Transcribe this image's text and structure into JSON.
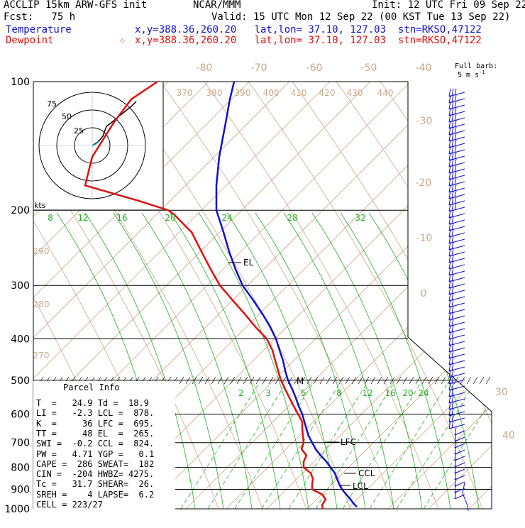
{
  "header": {
    "left1": "ACCLIP 15km ARW-GFS init",
    "left2": "Fcst:   75 h",
    "center": "NCAR/MMM",
    "init": "Init: 12 UTC Fri 09 Sep 22",
    "valid": "Valid: 15 UTC Mon 12 Sep 22 (00 KST Tue 13 Sep 22)",
    "temp_label": "Temperature",
    "temp_loc": "x,y=388.36,260.20   lat,lon= 37.10, 127.03  stn=RKSO,47122",
    "dew_label": "Dewpoint",
    "dew_star": "☆",
    "dew_loc": "x,y=388.36,260.20   lat,lon= 37.10, 127.03  stn=RKSO,47122"
  },
  "barb_key": {
    "line1": "Full barb:",
    "line2": "5 m s",
    "exp": "-1"
  },
  "pressure_labels": [
    "100",
    "200",
    "300",
    "400",
    "500",
    "600",
    "700",
    "800",
    "900",
    "1000"
  ],
  "top_labels": {
    "temps": [
      "-80",
      "-70",
      "-60",
      "-50",
      "-40"
    ],
    "theta": [
      "370",
      "380",
      "390",
      "400",
      "410",
      "420",
      "430",
      "440"
    ],
    "right_temps": [
      "-30",
      "-20",
      "-10",
      "0"
    ],
    "lower_right": [
      "30",
      "40"
    ],
    "theta_left": [
      "290",
      "280",
      "270"
    ],
    "mixing_upper": [
      "8",
      "12",
      "16",
      "20",
      "24",
      "28",
      "32"
    ],
    "mixing_lower": [
      "2",
      "3",
      "5",
      "8",
      "12",
      "16",
      "20",
      "24"
    ]
  },
  "hodograph": {
    "ring_labels": [
      "75",
      "50",
      "25"
    ],
    "kts": "kts"
  },
  "markers": {
    "el": "EL",
    "m": "M",
    "lfc": "LFC",
    "ccl": "CCL",
    "lcl": "LCL"
  },
  "parcel_info": {
    "title": "Parcel Info",
    "rows": [
      "T  =   24.9 Td =  18.9",
      "LI =   -2.3 LCL =  878.",
      "K  =     36 LFC =  695.",
      "TT =     48 EL  =  265.",
      "SWI =  -0.2 CCL =  824.",
      "PW =   4.71 YGP =   0.1",
      "CAPE =  286 SWEAT=  182",
      "CIN =  -204 HWBZ= 4275.",
      "Tc =   31.7 SHEAR=  26.",
      "SREH =    4 LAPSE=  6.2",
      "CELL = 223/27"
    ]
  },
  "colors": {
    "temperature": "#1010d0",
    "dewpoint": "#e01010",
    "isotherm": "#c8a888",
    "mixing": "#20b020",
    "barb": "#1010d0"
  },
  "chart_data": {
    "type": "line",
    "title": "",
    "xlabel": "",
    "ylabel": "",
    "y_axis": "pressure (hPa), log scale",
    "ylim": [
      1000,
      100
    ],
    "series": [
      {
        "name": "Temperature",
        "pressure": [
          990,
          970,
          950,
          925,
          900,
          875,
          850,
          825,
          800,
          775,
          750,
          725,
          700,
          675,
          650,
          625,
          600,
          575,
          550,
          525,
          500,
          475,
          450,
          425,
          400,
          375,
          350,
          325,
          300,
          275,
          250,
          225,
          200,
          175,
          150,
          125,
          110,
          100
        ],
        "screen_x": [
          503,
          498,
          494,
          488,
          482,
          478,
          475,
          472,
          466,
          460,
          452,
          445,
          440,
          435,
          432,
          429,
          426,
          421,
          417,
          412,
          406,
          402,
          399,
          394,
          389,
          381,
          370,
          357,
          342,
          332,
          323,
          315,
          305,
          305,
          309,
          318,
          324,
          330
        ]
      },
      {
        "name": "Dewpoint",
        "pressure": [
          1000,
          980,
          950,
          925,
          900,
          875,
          850,
          825,
          800,
          775,
          750,
          725,
          700,
          675,
          650,
          625,
          600,
          575,
          550,
          525,
          500,
          475,
          450,
          425,
          400,
          375,
          350,
          325,
          300,
          275,
          250,
          225,
          215,
          205,
          200,
          190,
          175,
          150,
          125,
          110,
          100
        ],
        "screen_x": [
          455,
          454,
          459,
          454,
          440,
          440,
          441,
          438,
          428,
          428,
          432,
          425,
          428,
          427,
          426,
          426,
          420,
          414,
          408,
          402,
          396,
          392,
          388,
          384,
          376,
          360,
          345,
          328,
          310,
          297,
          284,
          270,
          258,
          246,
          237,
          195,
          120,
          130,
          160,
          185,
          222
        ]
      }
    ],
    "grid": true
  }
}
